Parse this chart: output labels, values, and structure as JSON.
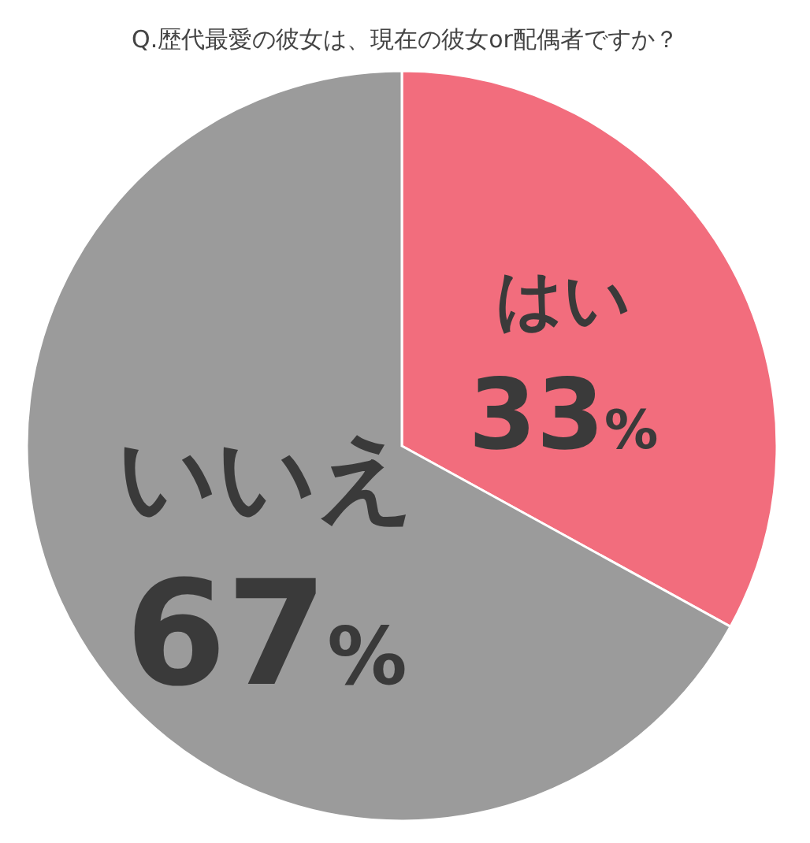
{
  "chart_data": {
    "type": "pie",
    "title": "Q.歴代最愛の彼女は、現在の彼女or配偶者ですか？",
    "categories": [
      "はい",
      "いいえ"
    ],
    "values": [
      33,
      67
    ],
    "colors": [
      "#f26d7d",
      "#9b9b9b"
    ],
    "value_labels": [
      "33%",
      "67%"
    ]
  }
}
